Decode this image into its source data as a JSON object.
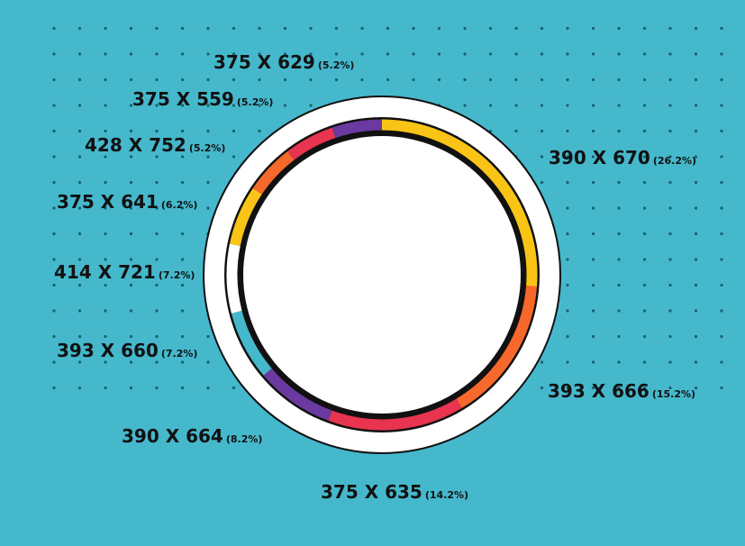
{
  "chart_data": {
    "type": "donut",
    "categories": [
      "390 X 670",
      "393 X 666",
      "375 X 635",
      "390 X 664",
      "393 X 660",
      "414 X 721",
      "375 X 641",
      "428 X 752",
      "375 X 559",
      "375 X 629"
    ],
    "values": [
      26.2,
      15.2,
      14.2,
      8.2,
      7.2,
      7.2,
      6.2,
      5.2,
      5.2,
      5.2
    ],
    "value_labels": [
      "(26.2%)",
      "(15.2%)",
      "(14.2%)",
      "(8.2%)",
      "(7.2%)",
      "(7.2%)",
      "(6.2%)",
      "(5.2%)",
      "(5.2%)",
      "(5.2%)"
    ],
    "colors": [
      "#f9c416",
      "#f7692a",
      "#e8344e",
      "#6b3aa0",
      "#45b8cc",
      "#ffffff",
      "#f9c416",
      "#f7692a",
      "#e8344e",
      "#6b3aa0"
    ]
  }
}
